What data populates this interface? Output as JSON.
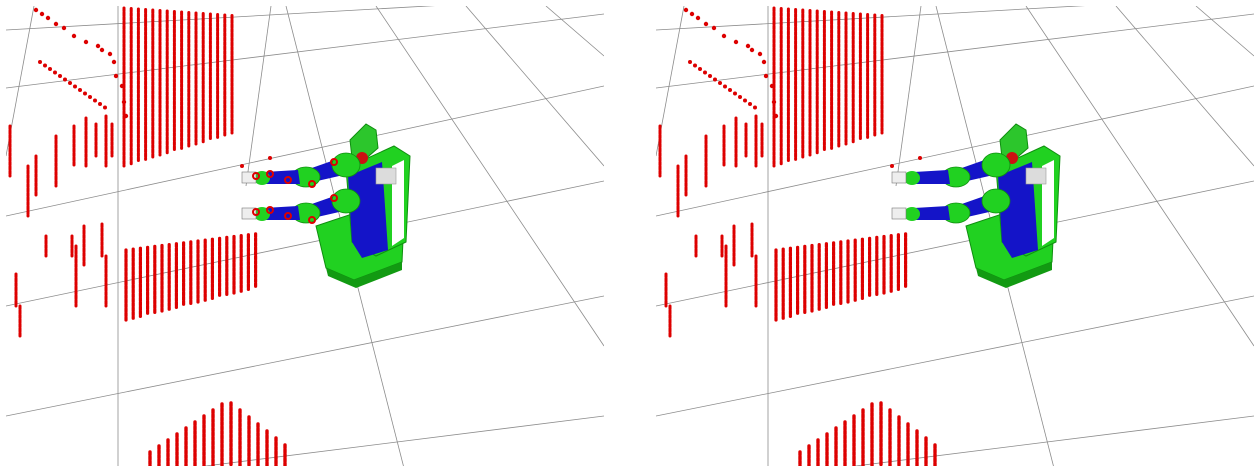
{
  "page": {
    "background": "#ffffff"
  },
  "panels": [
    {
      "id": "left",
      "description_label": "",
      "show_arm_collision_points": true
    },
    {
      "id": "right",
      "description_label": "",
      "show_arm_collision_points": false
    }
  ],
  "scene": {
    "grid_color": "#8c8c8c",
    "point_cloud_color": "#dd0000",
    "robot": {
      "body_color": "#21d121",
      "joint_color": "#1414c8",
      "link_color": "#ffffff",
      "pad_color": "#dcdcdc",
      "head_color": "#2cc62c"
    },
    "icons": [
      "grid",
      "laser-scan-points",
      "robot-model"
    ]
  }
}
